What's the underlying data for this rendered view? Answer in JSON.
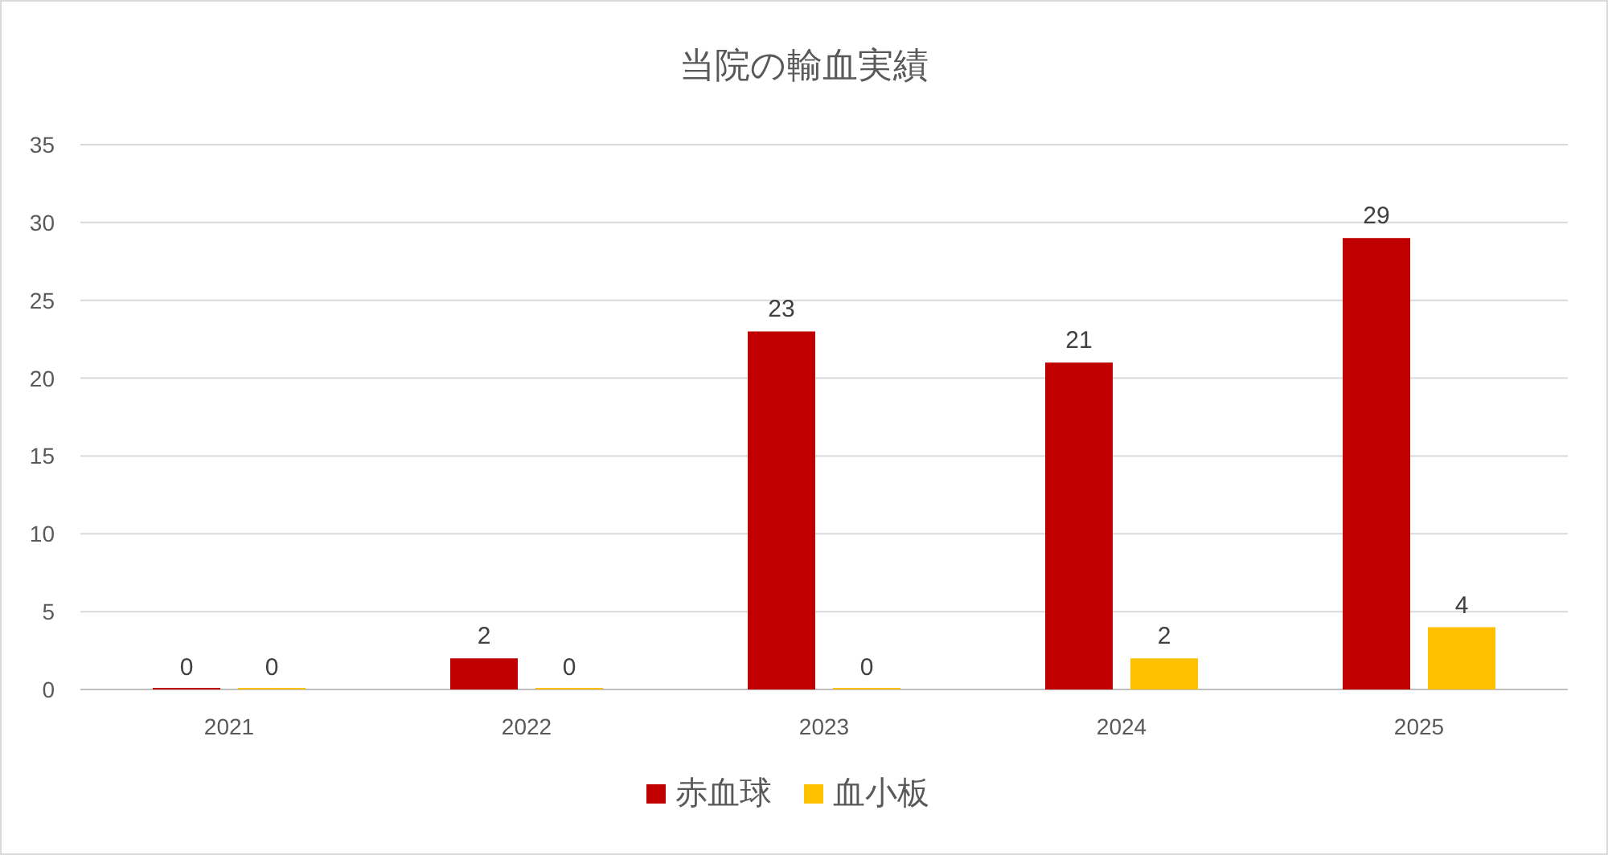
{
  "chart_data": {
    "type": "bar",
    "title": "当院の輸血実績",
    "categories": [
      "2021",
      "2022",
      "2023",
      "2024",
      "2025"
    ],
    "series": [
      {
        "name": "赤血球",
        "color": "#c00000",
        "values": [
          0,
          2,
          23,
          21,
          29
        ]
      },
      {
        "name": "血小板",
        "color": "#ffc000",
        "values": [
          0,
          0,
          0,
          2,
          4
        ]
      }
    ],
    "ylim": [
      0,
      35
    ],
    "yticks": [
      0,
      5,
      10,
      15,
      20,
      25,
      30,
      35
    ],
    "grid": "y",
    "legend": "bottom",
    "data_labels": true
  }
}
